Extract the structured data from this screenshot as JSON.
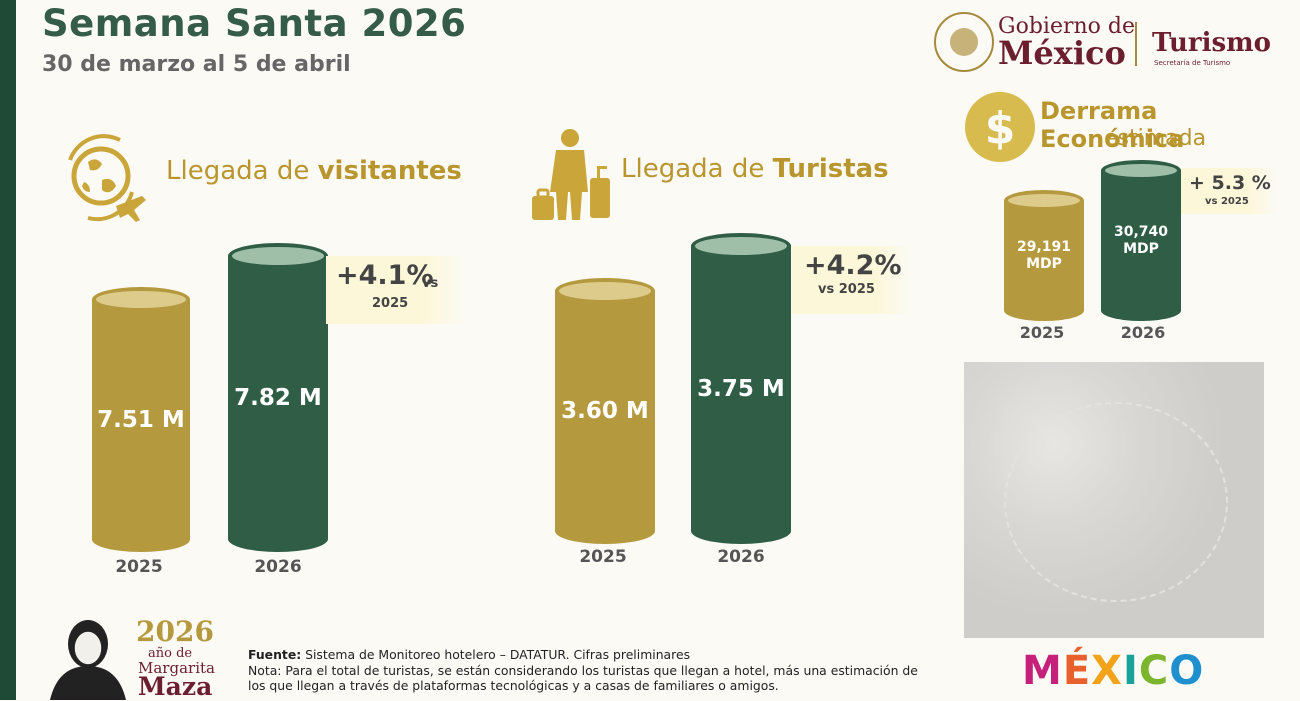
{
  "header": {
    "title": "Semana Santa 2026",
    "subtitle": "30 de marzo al 5 de abril"
  },
  "logos": {
    "gobierno_line1": "Gobierno de",
    "gobierno_line2": "México",
    "turismo": "Turismo",
    "turismo_sub": "Secretaría de Turismo",
    "mexico_brand": "MÉXICO"
  },
  "panels": {
    "visitantes": {
      "title_prefix": "Llegada de ",
      "title_bold": "visitantes",
      "pct": "+4.1%",
      "vs1": "vs",
      "vs2": "2025"
    },
    "turistas": {
      "title_prefix": "Llegada de ",
      "title_bold": "Turistas",
      "pct": "+4.2%",
      "vs": "vs 2025"
    },
    "derrama": {
      "title": "Derrama Económica",
      "subtitle": "estimada",
      "pct": "+ 5.3 %",
      "vs": "vs 2025"
    }
  },
  "chart_data": [
    {
      "type": "bar",
      "title": "Llegada de visitantes",
      "categories": [
        "2025",
        "2026"
      ],
      "values": [
        7.51,
        7.82
      ],
      "labels": [
        "7.51 M",
        "7.82 M"
      ],
      "colors": [
        "#b5993e",
        "#2f5d45"
      ]
    },
    {
      "type": "bar",
      "title": "Llegada de Turistas",
      "categories": [
        "2025",
        "2026"
      ],
      "values": [
        3.6,
        3.75
      ],
      "labels": [
        "3.60 M",
        "3.75 M"
      ],
      "colors": [
        "#b5993e",
        "#2f5d45"
      ]
    },
    {
      "type": "bar",
      "title": "Derrama Económica estimada",
      "categories": [
        "2025",
        "2026"
      ],
      "values": [
        29191,
        30740
      ],
      "labels_top": [
        "29,191",
        "30,740"
      ],
      "labels_bottom": [
        "MDP",
        "MDP"
      ],
      "colors": [
        "#b5993e",
        "#2f5d45"
      ]
    }
  ],
  "margarita": {
    "year": "2026",
    "line2": "año de",
    "line3": "Margarita",
    "line4": "Maza"
  },
  "footer": {
    "fuente_label": "Fuente:",
    "fuente_text": " Sistema de Monitoreo hotelero – DATATUR. Cifras preliminares",
    "nota": "Nota: Para el total de turistas, se están considerando los turistas que llegan a hotel, más una estimación de los que llegan a través de plataformas tecnológicas y a casas de familiares o amigos."
  },
  "colors": {
    "gold": "#b5993e",
    "green": "#2f5d45",
    "guinda": "#6b1e2e"
  }
}
